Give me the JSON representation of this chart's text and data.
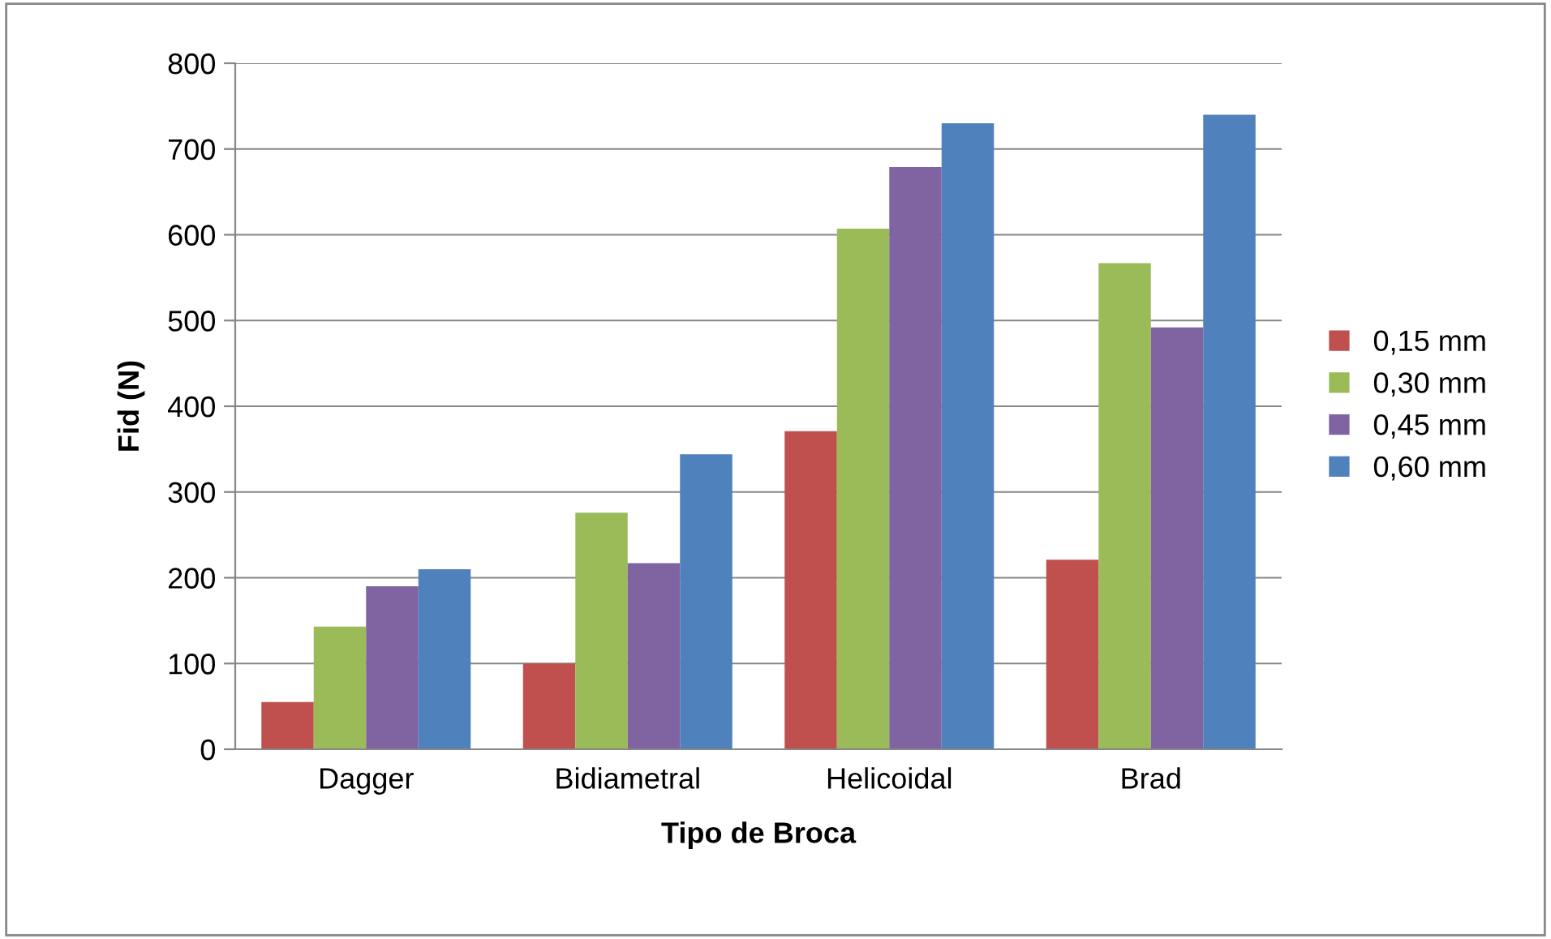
{
  "chart_data": {
    "type": "bar",
    "xlabel": "Tipo de Broca",
    "ylabel": "Fid (N)",
    "categories": [
      "Dagger",
      "Bidiametral",
      "Helicoidal",
      "Brad"
    ],
    "series": [
      {
        "name": "0,15 mm",
        "color": "#c0504d",
        "values": [
          55,
          100,
          371,
          221
        ]
      },
      {
        "name": "0,30 mm",
        "color": "#9bbb59",
        "values": [
          143,
          276,
          607,
          567
        ]
      },
      {
        "name": "0,45 mm",
        "color": "#8064a2",
        "values": [
          190,
          217,
          679,
          492
        ]
      },
      {
        "name": "0,60 mm",
        "color": "#4f81bd",
        "values": [
          210,
          344,
          730,
          740
        ]
      }
    ],
    "ylim": [
      0,
      800
    ],
    "yticks": [
      0,
      100,
      200,
      300,
      400,
      500,
      600,
      700,
      800
    ],
    "grid": "y",
    "legend": "right"
  }
}
